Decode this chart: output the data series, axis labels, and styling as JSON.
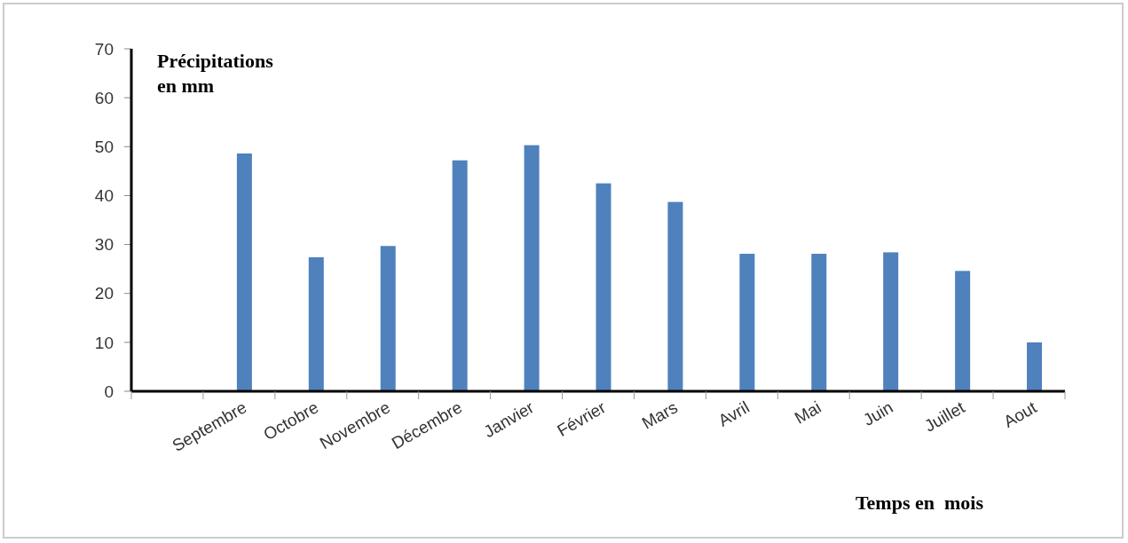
{
  "chart_data": {
    "type": "bar",
    "ylabel": "Précipitations en mm",
    "xlabel": "Temps en  mois",
    "categories": [
      null,
      "Septembre",
      "Octobre",
      "Novembre",
      "Décembre",
      "Janvier",
      "Février",
      "Mars",
      "Avril",
      "Mai",
      "Juin",
      "Juillet",
      "Aout"
    ],
    "series": [
      {
        "color": "#4f81bd",
        "values": [
          null,
          48.6,
          27.4,
          29.7,
          47.2,
          50.3,
          42.5,
          38.7,
          28.1,
          28.1,
          28.4,
          24.6,
          10.0
        ]
      }
    ],
    "ylim": [
      0,
      70
    ],
    "yticks": [
      0,
      10,
      20,
      30,
      40,
      50,
      60,
      70
    ],
    "grid": false
  }
}
